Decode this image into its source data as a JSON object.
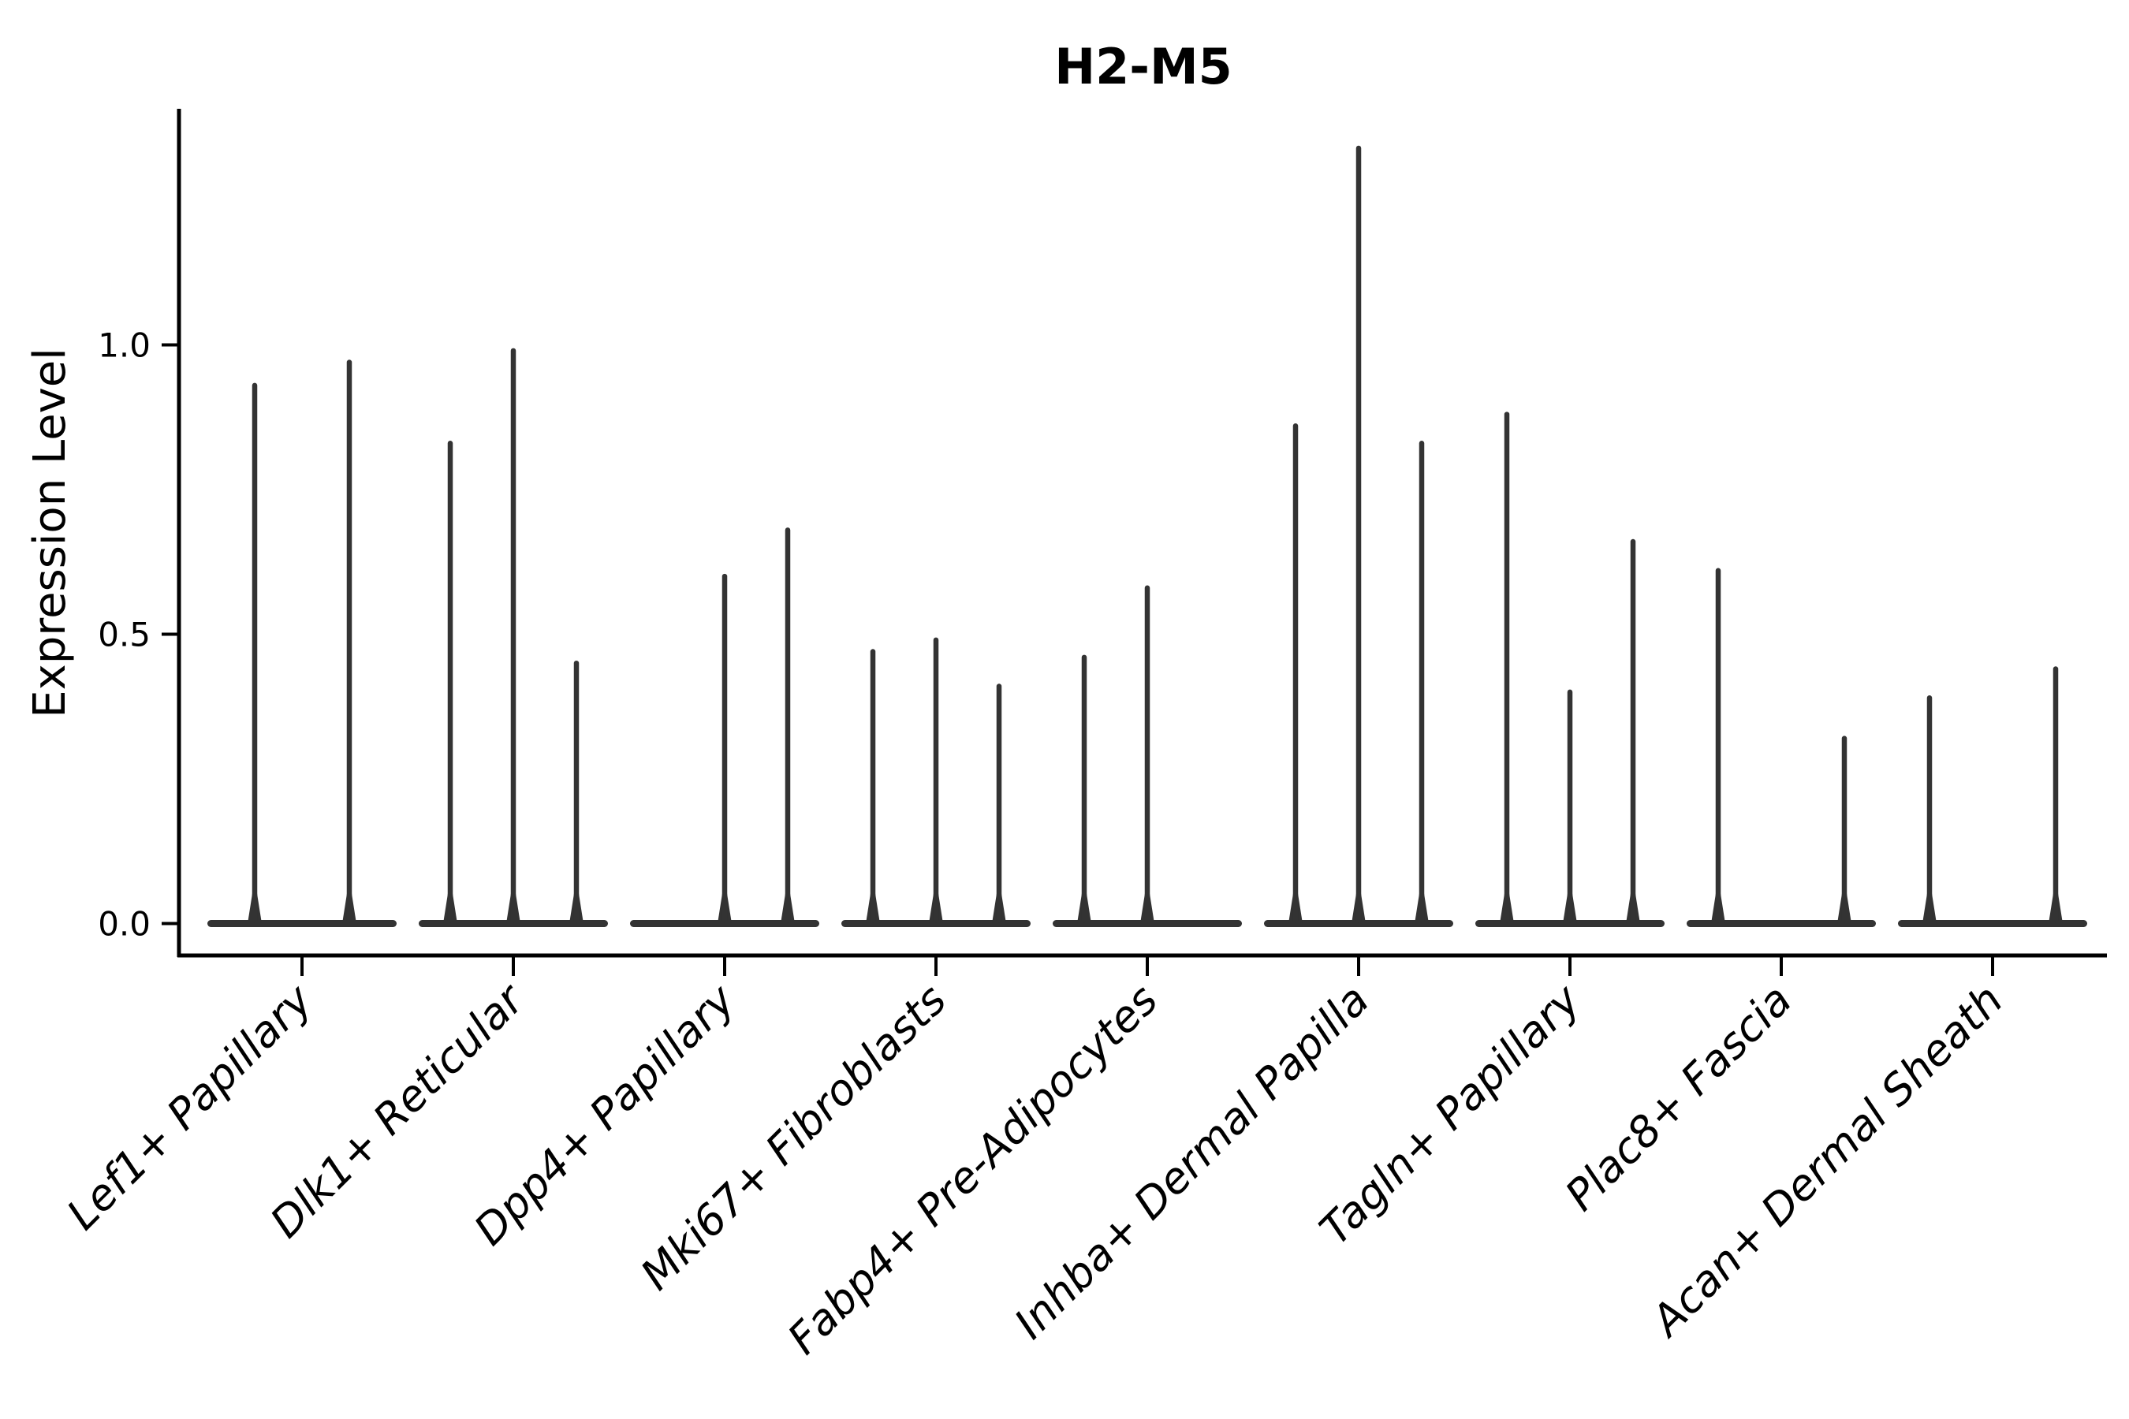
{
  "chart_data": {
    "type": "violin",
    "title": "H2-M5",
    "ylabel": "Expression Level",
    "xlabel": "",
    "ytick_labels": [
      "0.0",
      "0.5",
      "1.0"
    ],
    "ytick_values": [
      0.0,
      0.5,
      1.0
    ],
    "ylim": [
      -0.057,
      1.405
    ],
    "grid": false,
    "legend": "none",
    "categories": [
      "Lef1+ Papillary",
      "Dlk1+ Reticular",
      "Dpp4+ Papillary",
      "Mki67+ Fibroblasts",
      "Fabp4+ Pre-Adipocytes",
      "Inhba+ Dermal Papilla",
      "Tagln+ Papillary",
      "Plac8+ Fascia",
      "Acan+ Dermal Sheath"
    ],
    "violin_max_values": [
      [
        0.93,
        0.97
      ],
      [
        0.83,
        0.99,
        0.45
      ],
      [
        0,
        0.6,
        0.68
      ],
      [
        0.47,
        0.49,
        0.41
      ],
      [
        0.46,
        0.58,
        0
      ],
      [
        0.86,
        1.34,
        0.83
      ],
      [
        0.88,
        0.4,
        0.66
      ],
      [
        0.61,
        0,
        0.32
      ],
      [
        0.39,
        0,
        0.44
      ]
    ]
  },
  "colors": {
    "violin": "#333333",
    "axis": "#000000",
    "text": "#000000",
    "background": "#ffffff"
  }
}
